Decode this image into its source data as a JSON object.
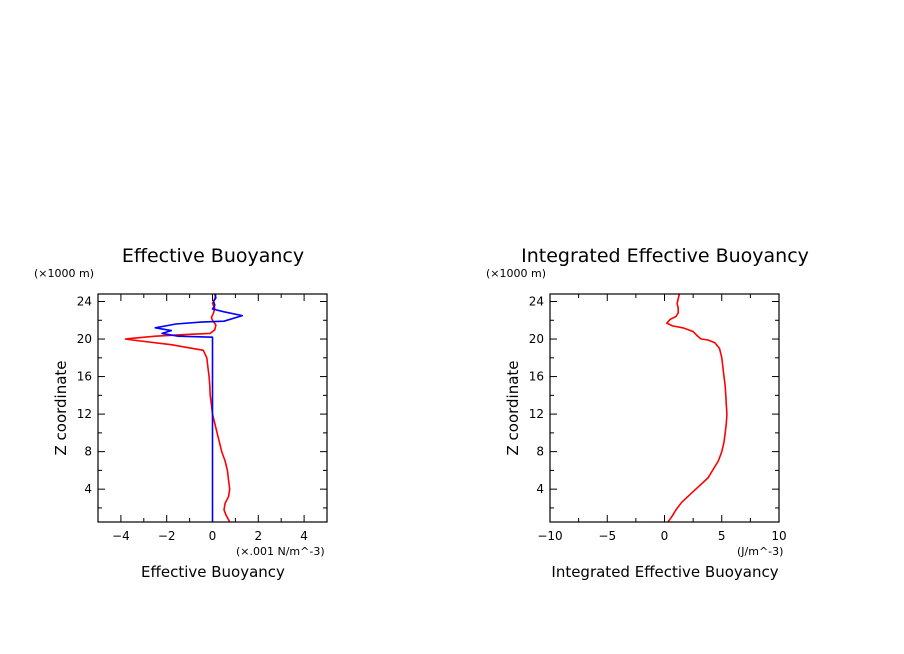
{
  "chart_data": [
    {
      "type": "line",
      "title": "Effective Buoyancy",
      "xlabel": "Effective Buoyancy",
      "xunits": "(×.001 N/m^-3)",
      "ylabel": "Z coordinate",
      "yunits": "(×1000 m)",
      "xlim": [
        -5,
        5
      ],
      "ylim": [
        0.5,
        24.8
      ],
      "xticks": [
        -4,
        -2,
        0,
        2,
        4
      ],
      "yticks": [
        4,
        8,
        12,
        16,
        20,
        24
      ],
      "grid": false,
      "series": [
        {
          "color": "#ff0000",
          "points": [
            [
              0.75,
              0.5
            ],
            [
              0.6,
              1.2
            ],
            [
              0.5,
              1.8
            ],
            [
              0.55,
              2.5
            ],
            [
              0.7,
              3.2
            ],
            [
              0.75,
              4.0
            ],
            [
              0.7,
              5.0
            ],
            [
              0.65,
              6.0
            ],
            [
              0.55,
              7.0
            ],
            [
              0.4,
              8.0
            ],
            [
              0.3,
              9.0
            ],
            [
              0.2,
              10.0
            ],
            [
              0.1,
              11.0
            ],
            [
              0.0,
              12.0
            ],
            [
              -0.05,
              13.0
            ],
            [
              -0.1,
              14.0
            ],
            [
              -0.12,
              15.0
            ],
            [
              -0.15,
              16.0
            ],
            [
              -0.2,
              17.0
            ],
            [
              -0.25,
              18.0
            ],
            [
              -0.4,
              18.8
            ],
            [
              -1.8,
              19.4
            ],
            [
              -3.5,
              19.9
            ],
            [
              -3.8,
              20.0
            ],
            [
              -2.5,
              20.3
            ],
            [
              -1.0,
              20.5
            ],
            [
              -0.1,
              20.6
            ],
            [
              0.1,
              21.0
            ],
            [
              0.15,
              21.5
            ],
            [
              0.0,
              22.0
            ],
            [
              -0.05,
              22.3
            ],
            [
              0.05,
              22.8
            ],
            [
              0.1,
              23.3
            ],
            [
              0.0,
              23.8
            ],
            [
              0.1,
              24.3
            ],
            [
              0.15,
              24.8
            ]
          ]
        },
        {
          "color": "#0000ff",
          "points": [
            [
              0.0,
              0.5
            ],
            [
              0.0,
              20.2
            ],
            [
              -1.5,
              20.3
            ],
            [
              -2.2,
              20.6
            ],
            [
              -1.8,
              20.9
            ],
            [
              -2.5,
              21.2
            ],
            [
              -1.6,
              21.6
            ],
            [
              -0.5,
              21.8
            ],
            [
              0.5,
              21.9
            ],
            [
              1.3,
              22.5
            ],
            [
              0.5,
              22.9
            ],
            [
              0.0,
              23.2
            ],
            [
              0.1,
              23.6
            ],
            [
              0.05,
              24.0
            ],
            [
              0.15,
              24.4
            ],
            [
              0.1,
              24.8
            ]
          ]
        }
      ]
    },
    {
      "type": "line",
      "title": "Integrated Effective Buoyancy",
      "xlabel": "Integrated Effective Buoyancy",
      "xunits": "(J/m^-3)",
      "ylabel": "Z coordinate",
      "yunits": "(×1000 m)",
      "xlim": [
        -10,
        10
      ],
      "ylim": [
        0.5,
        24.8
      ],
      "xticks": [
        -10,
        -5,
        0,
        5,
        10
      ],
      "yticks": [
        4,
        8,
        12,
        16,
        20,
        24
      ],
      "grid": false,
      "series": [
        {
          "color": "#ff0000",
          "points": [
            [
              0.3,
              0.5
            ],
            [
              0.6,
              1.0
            ],
            [
              1.0,
              1.8
            ],
            [
              1.5,
              2.6
            ],
            [
              2.2,
              3.4
            ],
            [
              3.0,
              4.3
            ],
            [
              3.8,
              5.2
            ],
            [
              4.3,
              6.2
            ],
            [
              4.7,
              7.0
            ],
            [
              5.0,
              8.0
            ],
            [
              5.2,
              9.0
            ],
            [
              5.3,
              10.0
            ],
            [
              5.4,
              11.0
            ],
            [
              5.45,
              12.0
            ],
            [
              5.4,
              13.0
            ],
            [
              5.35,
              14.0
            ],
            [
              5.3,
              15.0
            ],
            [
              5.2,
              16.0
            ],
            [
              5.1,
              17.0
            ],
            [
              5.0,
              18.0
            ],
            [
              4.8,
              19.0
            ],
            [
              4.4,
              19.6
            ],
            [
              3.8,
              19.9
            ],
            [
              3.2,
              20.0
            ],
            [
              2.9,
              20.3
            ],
            [
              2.5,
              20.8
            ],
            [
              1.6,
              21.2
            ],
            [
              0.7,
              21.4
            ],
            [
              0.2,
              21.7
            ],
            [
              0.5,
              22.1
            ],
            [
              1.0,
              22.4
            ],
            [
              1.2,
              22.8
            ],
            [
              1.2,
              23.3
            ],
            [
              1.1,
              23.8
            ],
            [
              1.2,
              24.3
            ],
            [
              1.3,
              24.8
            ]
          ]
        }
      ]
    }
  ]
}
